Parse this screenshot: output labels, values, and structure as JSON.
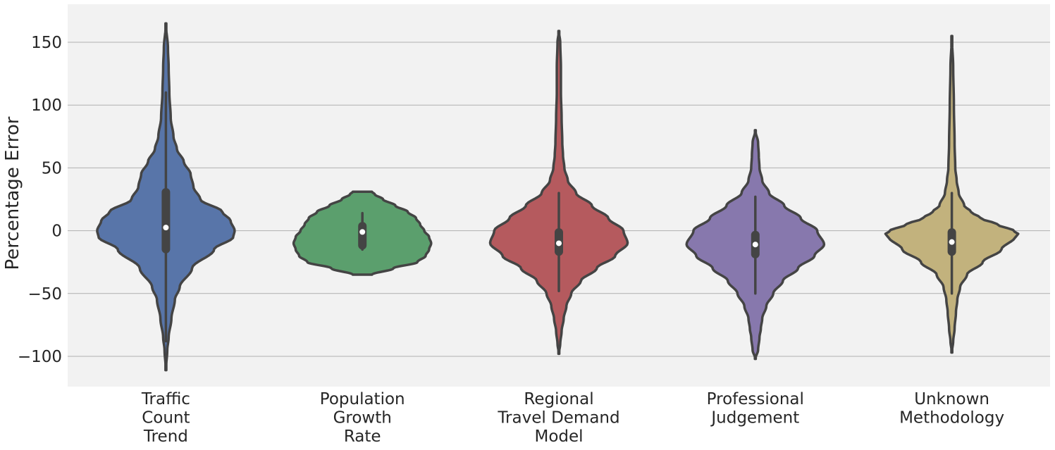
{
  "chart_data": {
    "type": "violin",
    "ylabel": "Percentage Error",
    "xlabel": "",
    "ylim": [
      -125,
      180
    ],
    "yticks": [
      150,
      100,
      50,
      0,
      -50,
      -100
    ],
    "ytick_labels": [
      "150",
      "100",
      "50",
      "0",
      "−50",
      "−100"
    ],
    "grid": true,
    "background": "#f2f2f2",
    "gridline_color": "#b0b0b0",
    "outline_color": "#444444",
    "categories": [
      {
        "label_lines": [
          "Traffic",
          "Count",
          "Trend"
        ],
        "color": "#5875a9",
        "min": -111,
        "max": 165,
        "q1": -18,
        "median": 2.5,
        "q3": 34,
        "whisker_low": -88,
        "whisker_high": 110,
        "density_profile": [
          [
            -111,
            0
          ],
          [
            -95,
            0.02
          ],
          [
            -85,
            0.04
          ],
          [
            -70,
            0.08
          ],
          [
            -55,
            0.13
          ],
          [
            -45,
            0.2
          ],
          [
            -30,
            0.38
          ],
          [
            -15,
            0.7
          ],
          [
            -5,
            0.98
          ],
          [
            0,
            1.0
          ],
          [
            8,
            0.94
          ],
          [
            15,
            0.82
          ],
          [
            25,
            0.5
          ],
          [
            35,
            0.4
          ],
          [
            45,
            0.36
          ],
          [
            55,
            0.26
          ],
          [
            65,
            0.16
          ],
          [
            75,
            0.11
          ],
          [
            90,
            0.07
          ],
          [
            110,
            0.05
          ],
          [
            130,
            0.04
          ],
          [
            145,
            0.03
          ],
          [
            165,
            0
          ]
        ]
      },
      {
        "label_lines": [
          "Population",
          "Growth",
          "Rate"
        ],
        "color": "#5b9f6d",
        "min": -35,
        "max": 31,
        "q1": -15,
        "median": -1,
        "q3": 7,
        "whisker_low": -15,
        "whisker_high": 14,
        "density_profile": [
          [
            -35,
            0.14
          ],
          [
            -30,
            0.45
          ],
          [
            -25,
            0.8
          ],
          [
            -20,
            0.92
          ],
          [
            -15,
            0.97
          ],
          [
            -10,
            1.0
          ],
          [
            -5,
            0.97
          ],
          [
            0,
            0.9
          ],
          [
            5,
            0.84
          ],
          [
            10,
            0.78
          ],
          [
            15,
            0.66
          ],
          [
            20,
            0.48
          ],
          [
            25,
            0.3
          ],
          [
            29,
            0.18
          ],
          [
            31,
            0.14
          ]
        ]
      },
      {
        "label_lines": [
          "Regional",
          "Travel Demand",
          "Model"
        ],
        "color": "#b55a5e",
        "min": -98,
        "max": 159,
        "q1": -20,
        "median": -10,
        "q3": 2,
        "whisker_low": -48,
        "whisker_high": 30,
        "density_profile": [
          [
            -98,
            0
          ],
          [
            -90,
            0.02
          ],
          [
            -80,
            0.04
          ],
          [
            -70,
            0.07
          ],
          [
            -60,
            0.11
          ],
          [
            -50,
            0.18
          ],
          [
            -40,
            0.32
          ],
          [
            -30,
            0.55
          ],
          [
            -20,
            0.82
          ],
          [
            -10,
            1.0
          ],
          [
            0,
            0.94
          ],
          [
            10,
            0.72
          ],
          [
            20,
            0.48
          ],
          [
            30,
            0.25
          ],
          [
            40,
            0.13
          ],
          [
            50,
            0.08
          ],
          [
            60,
            0.06
          ],
          [
            70,
            0.05
          ],
          [
            90,
            0.04
          ],
          [
            110,
            0.03
          ],
          [
            130,
            0.03
          ],
          [
            150,
            0.02
          ],
          [
            159,
            0
          ]
        ]
      },
      {
        "label_lines": [
          "Professional",
          "Judgement"
        ],
        "color": "#8778ad",
        "min": -102,
        "max": 80,
        "q1": -22,
        "median": -11,
        "q3": 0,
        "whisker_low": -50,
        "whisker_high": 27,
        "density_profile": [
          [
            -102,
            0
          ],
          [
            -95,
            0.04
          ],
          [
            -85,
            0.06
          ],
          [
            -78,
            0.08
          ],
          [
            -70,
            0.1
          ],
          [
            -60,
            0.16
          ],
          [
            -50,
            0.26
          ],
          [
            -40,
            0.4
          ],
          [
            -30,
            0.62
          ],
          [
            -20,
            0.86
          ],
          [
            -11,
            1.0
          ],
          [
            0,
            0.9
          ],
          [
            10,
            0.66
          ],
          [
            20,
            0.42
          ],
          [
            30,
            0.2
          ],
          [
            40,
            0.1
          ],
          [
            50,
            0.06
          ],
          [
            60,
            0.05
          ],
          [
            70,
            0.04
          ],
          [
            80,
            0
          ]
        ]
      },
      {
        "label_lines": [
          "Unknown",
          "Methodology"
        ],
        "color": "#c2b27d",
        "min": -97,
        "max": 155,
        "q1": -20,
        "median": -9,
        "q3": 2,
        "whisker_low": -50,
        "whisker_high": 30,
        "density_profile": [
          [
            -97,
            0
          ],
          [
            -88,
            0.02
          ],
          [
            -78,
            0.04
          ],
          [
            -65,
            0.06
          ],
          [
            -55,
            0.08
          ],
          [
            -45,
            0.12
          ],
          [
            -35,
            0.22
          ],
          [
            -25,
            0.45
          ],
          [
            -15,
            0.72
          ],
          [
            -5,
            0.92
          ],
          [
            -3,
            0.97
          ],
          [
            0,
            0.9
          ],
          [
            5,
            0.66
          ],
          [
            10,
            0.42
          ],
          [
            15,
            0.28
          ],
          [
            20,
            0.18
          ],
          [
            30,
            0.1
          ],
          [
            40,
            0.07
          ],
          [
            50,
            0.05
          ],
          [
            70,
            0.04
          ],
          [
            100,
            0.03
          ],
          [
            130,
            0.02
          ],
          [
            155,
            0
          ]
        ]
      }
    ]
  }
}
